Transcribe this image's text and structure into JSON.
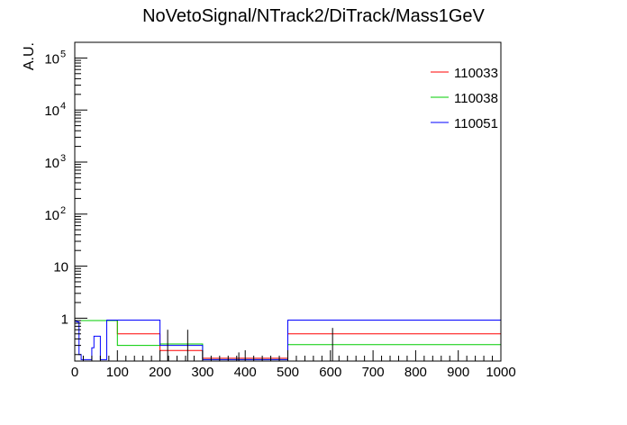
{
  "chart_data": {
    "type": "line",
    "title": "NoVetoSignal/NTrack2/DiTrack/Mass1GeV",
    "xlabel": "",
    "ylabel": "A.U.",
    "xlim": [
      0,
      1000
    ],
    "ylim": [
      0.15,
      200000
    ],
    "y_scale": "log",
    "grid": false,
    "legend_position": "top-right",
    "x_ticks": [
      "0",
      "100",
      "200",
      "300",
      "400",
      "500",
      "600",
      "700",
      "800",
      "900",
      "1000"
    ],
    "y_ticks": [
      {
        "value": 1,
        "base": "1",
        "exp": ""
      },
      {
        "value": 10,
        "base": "10",
        "exp": ""
      },
      {
        "value": 100,
        "base": "10",
        "exp": "2"
      },
      {
        "value": 1000,
        "base": "10",
        "exp": "3"
      },
      {
        "value": 10000,
        "base": "10",
        "exp": "4"
      },
      {
        "value": 100000,
        "base": "10",
        "exp": "5"
      }
    ],
    "series": [
      {
        "name": "110033",
        "color": "#ff0000",
        "steps": [
          {
            "x0": 0,
            "x1": 5,
            "y": 0.9
          },
          {
            "x0": 5,
            "x1": 10,
            "y": 0.9
          },
          {
            "x0": 10,
            "x1": 20,
            "y": 0.9
          },
          {
            "x0": 20,
            "x1": 100,
            "y": 0.9
          },
          {
            "x0": 100,
            "x1": 200,
            "y": 0.5
          },
          {
            "x0": 200,
            "x1": 300,
            "y": 0.24
          },
          {
            "x0": 300,
            "x1": 500,
            "y": 0.17
          },
          {
            "x0": 500,
            "x1": 1000,
            "y": 0.5
          }
        ]
      },
      {
        "name": "110038",
        "color": "#00cc00",
        "steps": [
          {
            "x0": 0,
            "x1": 5,
            "y": 0.9
          },
          {
            "x0": 5,
            "x1": 10,
            "y": 0.9
          },
          {
            "x0": 10,
            "x1": 20,
            "y": 0.9
          },
          {
            "x0": 20,
            "x1": 100,
            "y": 0.9
          },
          {
            "x0": 100,
            "x1": 200,
            "y": 0.3
          },
          {
            "x0": 200,
            "x1": 300,
            "y": 0.32
          },
          {
            "x0": 300,
            "x1": 500,
            "y": 0.16
          },
          {
            "x0": 500,
            "x1": 1000,
            "y": 0.31
          }
        ]
      },
      {
        "name": "110051",
        "color": "#0000ff",
        "steps": [
          {
            "x0": 0,
            "x1": 5,
            "y": 0.87
          },
          {
            "x0": 5,
            "x1": 10,
            "y": 0.85
          },
          {
            "x0": 10,
            "x1": 15,
            "y": 0.2
          },
          {
            "x0": 15,
            "x1": 20,
            "y": 0.16
          },
          {
            "x0": 20,
            "x1": 40,
            "y": 0.16
          },
          {
            "x0": 40,
            "x1": 45,
            "y": 0.27
          },
          {
            "x0": 45,
            "x1": 50,
            "y": 0.45
          },
          {
            "x0": 50,
            "x1": 60,
            "y": 0.45
          },
          {
            "x0": 60,
            "x1": 75,
            "y": 0.16
          },
          {
            "x0": 75,
            "x1": 100,
            "y": 0.92
          },
          {
            "x0": 100,
            "x1": 200,
            "y": 0.92
          },
          {
            "x0": 200,
            "x1": 300,
            "y": 0.3
          },
          {
            "x0": 300,
            "x1": 500,
            "y": 0.16
          },
          {
            "x0": 500,
            "x1": 1000,
            "y": 0.92
          }
        ]
      }
    ],
    "error_bars": [
      {
        "x": 218,
        "y_low": 0.15,
        "y_high": 0.6
      },
      {
        "x": 265,
        "y_low": 0.15,
        "y_high": 0.6
      },
      {
        "x": 605,
        "y_low": 0.15,
        "y_high": 0.65
      },
      {
        "x": 385,
        "y_low": 0.15,
        "y_high": 0.22
      }
    ]
  }
}
